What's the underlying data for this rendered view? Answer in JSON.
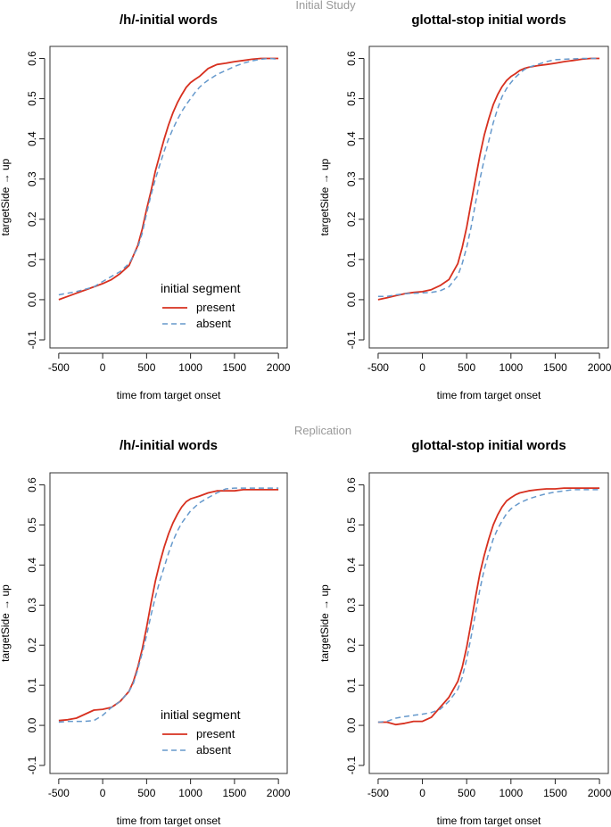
{
  "figure": {
    "section_titles": [
      "Initial Study",
      "Replication"
    ],
    "section_title_color": "#999999",
    "present_color": "#d7301f",
    "absent_color": "#6699cc"
  },
  "chart_data": [
    {
      "type": "line",
      "section": "Initial Study",
      "title": "/h/-initial words",
      "xlabel": "time from target onset",
      "ylabel": "targetSide → up",
      "xlim": [
        -600,
        2100
      ],
      "ylim": [
        -0.12,
        0.63
      ],
      "xticks": [
        -500,
        0,
        500,
        1000,
        1500,
        2000
      ],
      "yticks": [
        -0.1,
        0.0,
        0.1,
        0.2,
        0.3,
        0.4,
        0.5,
        0.6
      ],
      "legend": {
        "title": "initial segment",
        "position": "bottom-right"
      },
      "series": [
        {
          "name": "present",
          "x": [
            -500,
            -400,
            -300,
            -200,
            -100,
            0,
            100,
            200,
            300,
            400,
            450,
            500,
            550,
            600,
            650,
            700,
            750,
            800,
            850,
            900,
            950,
            1000,
            1050,
            1100,
            1150,
            1200,
            1250,
            1300,
            1400,
            1500,
            1600,
            1700,
            1800,
            1900,
            2000
          ],
          "y": [
            0.0,
            0.008,
            0.016,
            0.024,
            0.032,
            0.04,
            0.05,
            0.065,
            0.085,
            0.135,
            0.175,
            0.225,
            0.27,
            0.32,
            0.36,
            0.4,
            0.435,
            0.465,
            0.49,
            0.51,
            0.528,
            0.54,
            0.548,
            0.555,
            0.565,
            0.575,
            0.58,
            0.585,
            0.588,
            0.592,
            0.595,
            0.598,
            0.6,
            0.6,
            0.6
          ]
        },
        {
          "name": "absent",
          "x": [
            -500,
            -400,
            -300,
            -200,
            -100,
            0,
            100,
            200,
            300,
            400,
            450,
            500,
            550,
            600,
            650,
            700,
            750,
            800,
            850,
            900,
            950,
            1000,
            1050,
            1100,
            1150,
            1200,
            1250,
            1300,
            1400,
            1500,
            1600,
            1700,
            1800,
            1900,
            2000
          ],
          "y": [
            0.012,
            0.016,
            0.02,
            0.026,
            0.032,
            0.045,
            0.058,
            0.07,
            0.09,
            0.13,
            0.165,
            0.215,
            0.26,
            0.3,
            0.335,
            0.37,
            0.4,
            0.425,
            0.448,
            0.468,
            0.485,
            0.5,
            0.515,
            0.528,
            0.538,
            0.546,
            0.553,
            0.56,
            0.57,
            0.58,
            0.588,
            0.594,
            0.598,
            0.6,
            0.598
          ]
        }
      ]
    },
    {
      "type": "line",
      "section": "Initial Study",
      "title": "glottal-stop initial words",
      "xlabel": "time from target onset",
      "ylabel": "targetSide → up",
      "xlim": [
        -600,
        2100
      ],
      "ylim": [
        -0.12,
        0.63
      ],
      "xticks": [
        -500,
        0,
        500,
        1000,
        1500,
        2000
      ],
      "yticks": [
        -0.1,
        0.0,
        0.1,
        0.2,
        0.3,
        0.4,
        0.5,
        0.6
      ],
      "series": [
        {
          "name": "present",
          "x": [
            -500,
            -400,
            -300,
            -200,
            -100,
            0,
            100,
            200,
            300,
            400,
            450,
            500,
            550,
            600,
            650,
            700,
            750,
            800,
            850,
            900,
            950,
            1000,
            1050,
            1100,
            1150,
            1200,
            1300,
            1400,
            1500,
            1600,
            1700,
            1800,
            1900,
            2000
          ],
          "y": [
            0.0,
            0.005,
            0.01,
            0.015,
            0.018,
            0.02,
            0.025,
            0.035,
            0.05,
            0.09,
            0.13,
            0.18,
            0.24,
            0.3,
            0.36,
            0.41,
            0.45,
            0.485,
            0.51,
            0.53,
            0.545,
            0.555,
            0.562,
            0.57,
            0.575,
            0.578,
            0.582,
            0.585,
            0.588,
            0.592,
            0.595,
            0.598,
            0.6,
            0.6
          ]
        },
        {
          "name": "absent",
          "x": [
            -500,
            -400,
            -300,
            -200,
            -100,
            0,
            100,
            200,
            300,
            400,
            450,
            500,
            550,
            600,
            650,
            700,
            750,
            800,
            850,
            900,
            950,
            1000,
            1050,
            1100,
            1150,
            1200,
            1300,
            1400,
            1500,
            1600,
            1700,
            1800,
            1900,
            2000
          ],
          "y": [
            0.008,
            0.008,
            0.012,
            0.015,
            0.016,
            0.017,
            0.018,
            0.022,
            0.032,
            0.06,
            0.09,
            0.13,
            0.18,
            0.24,
            0.3,
            0.35,
            0.395,
            0.44,
            0.475,
            0.505,
            0.525,
            0.54,
            0.553,
            0.563,
            0.572,
            0.578,
            0.585,
            0.592,
            0.597,
            0.598,
            0.599,
            0.6,
            0.6,
            0.6
          ]
        }
      ]
    },
    {
      "type": "line",
      "section": "Replication",
      "title": "/h/-initial words",
      "xlabel": "time from target onset",
      "ylabel": "targetSide → up",
      "xlim": [
        -600,
        2100
      ],
      "ylim": [
        -0.12,
        0.63
      ],
      "xticks": [
        -500,
        0,
        500,
        1000,
        1500,
        2000
      ],
      "yticks": [
        -0.1,
        0.0,
        0.1,
        0.2,
        0.3,
        0.4,
        0.5,
        0.6
      ],
      "legend": {
        "title": "initial segment",
        "position": "bottom-right"
      },
      "series": [
        {
          "name": "present",
          "x": [
            -500,
            -400,
            -300,
            -200,
            -100,
            0,
            100,
            200,
            300,
            350,
            400,
            450,
            500,
            550,
            600,
            650,
            700,
            750,
            800,
            850,
            900,
            950,
            1000,
            1100,
            1200,
            1300,
            1400,
            1500,
            1600,
            1700,
            1800,
            1900,
            2000
          ],
          "y": [
            0.012,
            0.014,
            0.018,
            0.028,
            0.038,
            0.04,
            0.045,
            0.06,
            0.085,
            0.11,
            0.145,
            0.19,
            0.245,
            0.305,
            0.36,
            0.405,
            0.445,
            0.478,
            0.505,
            0.527,
            0.545,
            0.558,
            0.565,
            0.572,
            0.58,
            0.585,
            0.585,
            0.585,
            0.588,
            0.588,
            0.588,
            0.588,
            0.588
          ]
        },
        {
          "name": "absent",
          "x": [
            -500,
            -400,
            -300,
            -200,
            -100,
            0,
            100,
            200,
            300,
            350,
            400,
            450,
            500,
            550,
            600,
            650,
            700,
            750,
            800,
            850,
            900,
            950,
            1000,
            1100,
            1200,
            1300,
            1400,
            1500,
            1600,
            1700,
            1800,
            1900,
            2000
          ],
          "y": [
            0.008,
            0.01,
            0.01,
            0.01,
            0.012,
            0.025,
            0.045,
            0.06,
            0.085,
            0.105,
            0.14,
            0.18,
            0.225,
            0.275,
            0.32,
            0.36,
            0.395,
            0.43,
            0.46,
            0.485,
            0.505,
            0.52,
            0.535,
            0.555,
            0.568,
            0.58,
            0.59,
            0.592,
            0.592,
            0.592,
            0.592,
            0.592,
            0.592
          ]
        }
      ]
    },
    {
      "type": "line",
      "section": "Replication",
      "title": "glottal-stop initial words",
      "xlabel": "time from target onset",
      "ylabel": "targetSide → up",
      "xlim": [
        -600,
        2100
      ],
      "ylim": [
        -0.12,
        0.63
      ],
      "xticks": [
        -500,
        0,
        500,
        1000,
        1500,
        2000
      ],
      "yticks": [
        -0.1,
        0.0,
        0.1,
        0.2,
        0.3,
        0.4,
        0.5,
        0.6
      ],
      "series": [
        {
          "name": "present",
          "x": [
            -500,
            -400,
            -300,
            -200,
            -100,
            0,
            100,
            200,
            300,
            400,
            450,
            500,
            550,
            600,
            650,
            700,
            750,
            800,
            850,
            900,
            950,
            1000,
            1050,
            1100,
            1200,
            1300,
            1400,
            1500,
            1600,
            1700,
            1800,
            1900,
            2000
          ],
          "y": [
            0.008,
            0.008,
            0.002,
            0.005,
            0.01,
            0.01,
            0.02,
            0.045,
            0.07,
            0.11,
            0.145,
            0.195,
            0.255,
            0.32,
            0.38,
            0.425,
            0.465,
            0.5,
            0.525,
            0.545,
            0.56,
            0.568,
            0.575,
            0.58,
            0.585,
            0.588,
            0.59,
            0.59,
            0.592,
            0.592,
            0.592,
            0.592,
            0.592
          ]
        },
        {
          "name": "absent",
          "x": [
            -500,
            -400,
            -300,
            -200,
            -100,
            0,
            100,
            200,
            300,
            400,
            450,
            500,
            550,
            600,
            650,
            700,
            750,
            800,
            850,
            900,
            950,
            1000,
            1050,
            1100,
            1200,
            1300,
            1400,
            1500,
            1600,
            1700,
            1800,
            1900,
            2000
          ],
          "y": [
            0.008,
            0.01,
            0.018,
            0.022,
            0.025,
            0.028,
            0.032,
            0.04,
            0.06,
            0.09,
            0.12,
            0.165,
            0.22,
            0.28,
            0.34,
            0.39,
            0.43,
            0.465,
            0.49,
            0.51,
            0.528,
            0.54,
            0.548,
            0.555,
            0.565,
            0.572,
            0.578,
            0.582,
            0.585,
            0.588,
            0.588,
            0.588,
            0.588
          ]
        }
      ]
    }
  ]
}
